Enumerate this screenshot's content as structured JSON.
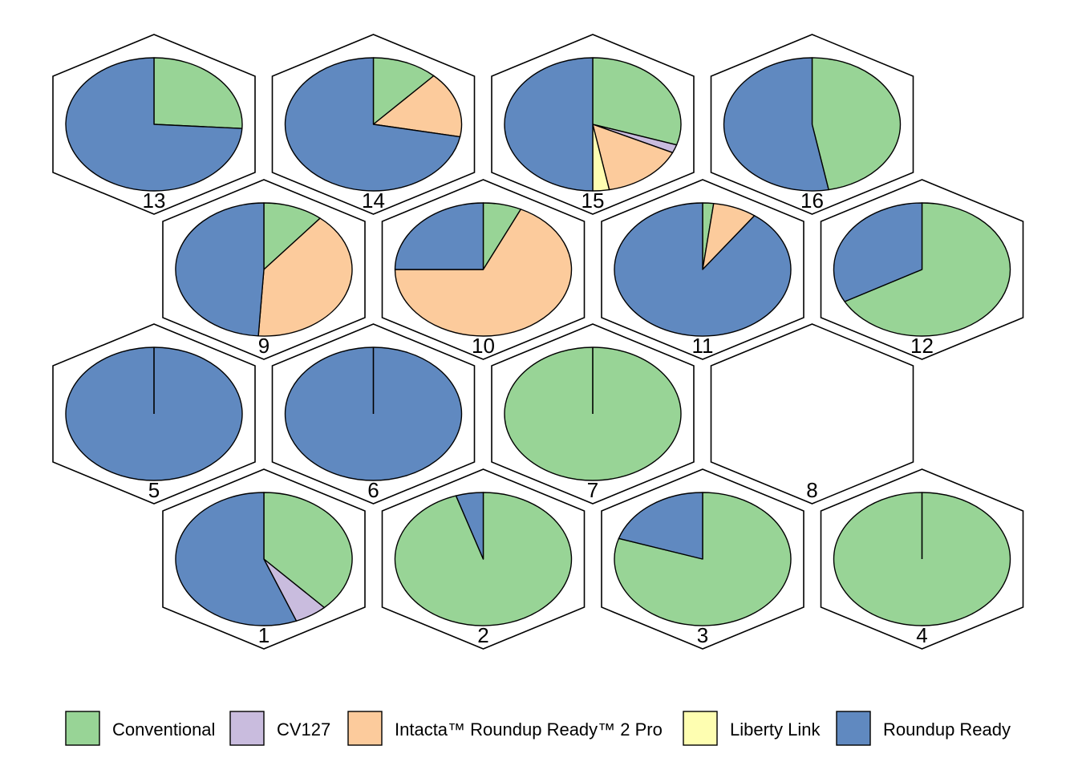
{
  "chart_data": {
    "type": "pie",
    "title": "",
    "description_units": "proportion of hexagon cell by category",
    "categories": [
      "Conventional",
      "CV127",
      "Intacta™ Roundup Ready™ 2 Pro",
      "Liberty Link",
      "Roundup Ready"
    ],
    "colors": {
      "Conventional": "#98d496",
      "CV127": "#c9bcde",
      "Intacta™ Roundup Ready™ 2 Pro": "#fccb9c",
      "Liberty Link": "#fefeb1",
      "Roundup Ready": "#6089c0"
    },
    "legend_position": "bottom",
    "cells": [
      {
        "label": "1",
        "values": [
          0.38,
          0.06,
          0.0,
          0.0,
          0.56
        ]
      },
      {
        "label": "2",
        "values": [
          0.95,
          0.0,
          0.0,
          0.0,
          0.05
        ]
      },
      {
        "label": "3",
        "values": [
          0.8,
          0.0,
          0.0,
          0.0,
          0.2
        ]
      },
      {
        "label": "4",
        "values": [
          1.0,
          0.0,
          0.0,
          0.0,
          0.0
        ]
      },
      {
        "label": "5",
        "values": [
          0.0,
          0.0,
          0.0,
          0.0,
          1.0
        ]
      },
      {
        "label": "6",
        "values": [
          0.0,
          0.0,
          0.0,
          0.0,
          1.0
        ]
      },
      {
        "label": "7",
        "values": [
          1.0,
          0.0,
          0.0,
          0.0,
          0.0
        ]
      },
      {
        "label": "8",
        "values": [],
        "empty": true
      },
      {
        "label": "9",
        "values": [
          0.11,
          0.0,
          0.4,
          0.0,
          0.49
        ]
      },
      {
        "label": "10",
        "values": [
          0.07,
          0.0,
          0.68,
          0.0,
          0.25
        ]
      },
      {
        "label": "11",
        "values": [
          0.02,
          0.0,
          0.08,
          0.0,
          0.9
        ]
      },
      {
        "label": "12",
        "values": [
          0.67,
          0.0,
          0.0,
          0.0,
          0.33
        ]
      },
      {
        "label": "13",
        "values": [
          0.26,
          0.0,
          0.0,
          0.0,
          0.74
        ]
      },
      {
        "label": "14",
        "values": [
          0.12,
          0.0,
          0.16,
          0.0,
          0.72
        ]
      },
      {
        "label": "15",
        "values": [
          0.3,
          0.02,
          0.15,
          0.03,
          0.5
        ]
      },
      {
        "label": "16",
        "values": [
          0.47,
          0.0,
          0.0,
          0.0,
          0.53
        ]
      }
    ]
  }
}
